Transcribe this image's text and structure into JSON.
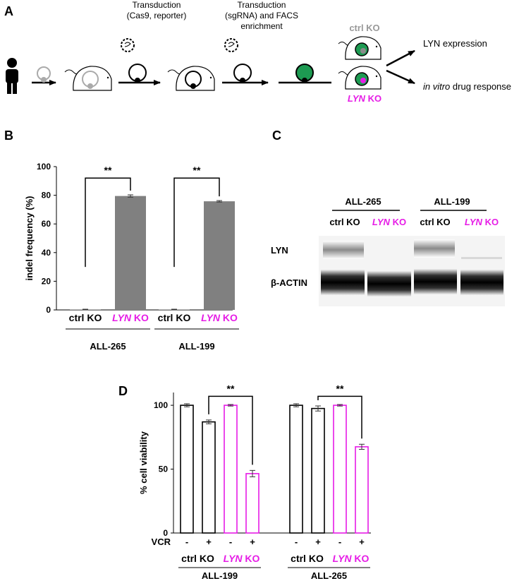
{
  "panel_labels": {
    "a": "A",
    "b": "B",
    "c": "C",
    "d": "D"
  },
  "panel_a": {
    "step1_line1": "Transduction",
    "step1_line2": "(Cas9, reporter)",
    "step2_line1": "Transduction",
    "step2_line2": "(sgRNA) and FACS",
    "step2_line3": "enrichment",
    "ctrl_label": "ctrl KO",
    "lyn_italic": "LYN",
    "lyn_suffix": " KO",
    "out1": "LYN expression",
    "out2_italic": "in vitro",
    "out2_rest": " drug response"
  },
  "panel_c": {
    "group1": "ALL-265",
    "group2": "ALL-199",
    "ctrl": "ctrl KO",
    "lyn_italic": "LYN",
    "lyn_suffix": " KO",
    "row1": "LYN",
    "row2": "β-ACTIN"
  },
  "chart_data": [
    {
      "type": "bar",
      "panel": "B",
      "ylabel": "indel frequency (%)",
      "ylim": [
        0,
        100
      ],
      "yticks": [
        0,
        20,
        40,
        60,
        80,
        100
      ],
      "groups": [
        "ALL-265",
        "ALL-199"
      ],
      "ctrl_label": "ctrl KO",
      "lyn_italic": "LYN",
      "lyn_suffix": " KO",
      "bars": [
        {
          "group": "ALL-265",
          "condition": "ctrl KO",
          "value": 0.3,
          "error": 0.2
        },
        {
          "group": "ALL-265",
          "condition": "LYN KO",
          "value": 79.5,
          "error": 0.8
        },
        {
          "group": "ALL-199",
          "condition": "ctrl KO",
          "value": 0.3,
          "error": 0.2
        },
        {
          "group": "ALL-199",
          "condition": "LYN KO",
          "value": 75.8,
          "error": 0.5
        }
      ],
      "significance": [
        "**",
        "**"
      ],
      "colors": {
        "bar": "#808080"
      }
    },
    {
      "type": "bar",
      "panel": "D",
      "ylabel": "% cell viability",
      "ylim": [
        0,
        110
      ],
      "yticks": [
        0,
        50,
        100
      ],
      "treatment_label": "VCR",
      "treatment_levels": [
        "-",
        "+",
        "-",
        "+"
      ],
      "groups": [
        "ALL-199",
        "ALL-265"
      ],
      "ctrl_label": "ctrl KO",
      "lyn_italic": "LYN",
      "lyn_suffix": " KO",
      "bars": [
        {
          "group": "ALL-199",
          "condition": "ctrl KO",
          "vcr": "-",
          "value": 100,
          "error": 1.2
        },
        {
          "group": "ALL-199",
          "condition": "ctrl KO",
          "vcr": "+",
          "value": 87,
          "error": 1.5
        },
        {
          "group": "ALL-199",
          "condition": "LYN KO",
          "vcr": "-",
          "value": 100,
          "error": 0.6
        },
        {
          "group": "ALL-199",
          "condition": "LYN KO",
          "vcr": "+",
          "value": 46.5,
          "error": 2.5
        },
        {
          "group": "ALL-265",
          "condition": "ctrl KO",
          "vcr": "-",
          "value": 100,
          "error": 1.2
        },
        {
          "group": "ALL-265",
          "condition": "ctrl KO",
          "vcr": "+",
          "value": 97.5,
          "error": 2.0
        },
        {
          "group": "ALL-265",
          "condition": "LYN KO",
          "vcr": "-",
          "value": 100,
          "error": 0.6
        },
        {
          "group": "ALL-265",
          "condition": "LYN KO",
          "vcr": "+",
          "value": 67.5,
          "error": 2.0
        }
      ],
      "significance": [
        "**",
        "**"
      ],
      "colors": {
        "ctrl": "#000000",
        "lyn": "#e61ce6"
      }
    }
  ]
}
